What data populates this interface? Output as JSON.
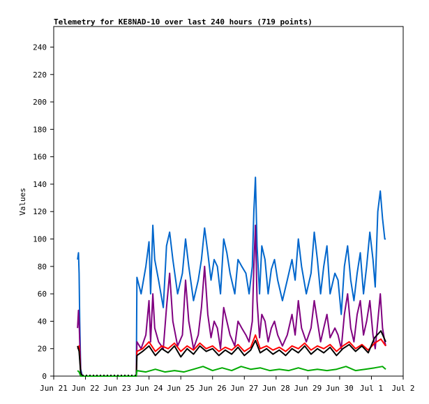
{
  "chart_data": {
    "type": "line",
    "title": "Telemetry for KE8NAD-10 over last 240 hours (719 points)",
    "xlabel": "",
    "ylabel": "Values",
    "x_ticks": [
      "Jun 21",
      "Jun 22",
      "Jun 23",
      "Jun 24",
      "Jun 25",
      "Jun 26",
      "Jun 27",
      "Jun 28",
      "Jun 29",
      "Jun 30",
      "Jul 1",
      "Jul 2"
    ],
    "xlim_days": [
      0,
      11
    ],
    "ylim": [
      0,
      255
    ],
    "y_ticks": [
      0,
      20,
      40,
      60,
      80,
      100,
      120,
      140,
      160,
      180,
      200,
      220,
      240
    ],
    "grid": false,
    "legend": "none",
    "series": [
      {
        "color": "#0066cc",
        "points": [
          [
            0.75,
            85
          ],
          [
            0.78,
            90
          ],
          [
            0.8,
            75
          ],
          [
            0.82,
            40
          ],
          [
            0.85,
            5
          ],
          [
            0.9,
            0
          ],
          [
            2.6,
            0
          ],
          [
            2.62,
            72
          ],
          [
            2.75,
            60
          ],
          [
            2.9,
            80
          ],
          [
            3.0,
            98
          ],
          [
            3.05,
            60
          ],
          [
            3.12,
            110
          ],
          [
            3.18,
            85
          ],
          [
            3.3,
            70
          ],
          [
            3.45,
            50
          ],
          [
            3.55,
            95
          ],
          [
            3.65,
            105
          ],
          [
            3.75,
            85
          ],
          [
            3.9,
            60
          ],
          [
            4.05,
            75
          ],
          [
            4.15,
            100
          ],
          [
            4.25,
            80
          ],
          [
            4.4,
            55
          ],
          [
            4.55,
            70
          ],
          [
            4.65,
            85
          ],
          [
            4.75,
            108
          ],
          [
            4.85,
            90
          ],
          [
            4.95,
            70
          ],
          [
            5.05,
            85
          ],
          [
            5.15,
            80
          ],
          [
            5.25,
            60
          ],
          [
            5.35,
            100
          ],
          [
            5.45,
            90
          ],
          [
            5.55,
            75
          ],
          [
            5.7,
            60
          ],
          [
            5.8,
            85
          ],
          [
            5.92,
            80
          ],
          [
            6.05,
            75
          ],
          [
            6.15,
            60
          ],
          [
            6.25,
            80
          ],
          [
            6.3,
            120
          ],
          [
            6.35,
            145
          ],
          [
            6.4,
            95
          ],
          [
            6.48,
            60
          ],
          [
            6.55,
            95
          ],
          [
            6.65,
            85
          ],
          [
            6.75,
            60
          ],
          [
            6.85,
            78
          ],
          [
            6.95,
            85
          ],
          [
            7.05,
            70
          ],
          [
            7.2,
            55
          ],
          [
            7.35,
            70
          ],
          [
            7.5,
            85
          ],
          [
            7.6,
            70
          ],
          [
            7.7,
            100
          ],
          [
            7.8,
            80
          ],
          [
            7.95,
            60
          ],
          [
            8.1,
            75
          ],
          [
            8.2,
            105
          ],
          [
            8.3,
            85
          ],
          [
            8.4,
            60
          ],
          [
            8.5,
            80
          ],
          [
            8.6,
            95
          ],
          [
            8.7,
            60
          ],
          [
            8.85,
            75
          ],
          [
            8.95,
            70
          ],
          [
            9.05,
            45
          ],
          [
            9.15,
            80
          ],
          [
            9.25,
            95
          ],
          [
            9.35,
            70
          ],
          [
            9.45,
            55
          ],
          [
            9.55,
            75
          ],
          [
            9.65,
            90
          ],
          [
            9.75,
            60
          ],
          [
            9.85,
            80
          ],
          [
            9.95,
            105
          ],
          [
            10.05,
            85
          ],
          [
            10.12,
            65
          ],
          [
            10.2,
            120
          ],
          [
            10.28,
            135
          ],
          [
            10.35,
            115
          ],
          [
            10.42,
            100
          ],
          [
            10.45,
            100
          ]
        ]
      },
      {
        "color": "#800080",
        "points": [
          [
            0.75,
            35
          ],
          [
            0.78,
            48
          ],
          [
            0.8,
            40
          ],
          [
            0.82,
            25
          ],
          [
            0.85,
            3
          ],
          [
            0.9,
            0
          ],
          [
            2.6,
            0
          ],
          [
            2.62,
            25
          ],
          [
            2.75,
            20
          ],
          [
            2.9,
            30
          ],
          [
            3.0,
            55
          ],
          [
            3.05,
            25
          ],
          [
            3.12,
            60
          ],
          [
            3.18,
            35
          ],
          [
            3.3,
            25
          ],
          [
            3.45,
            20
          ],
          [
            3.55,
            50
          ],
          [
            3.65,
            75
          ],
          [
            3.75,
            40
          ],
          [
            3.9,
            22
          ],
          [
            4.05,
            30
          ],
          [
            4.15,
            70
          ],
          [
            4.25,
            40
          ],
          [
            4.4,
            20
          ],
          [
            4.55,
            30
          ],
          [
            4.65,
            50
          ],
          [
            4.75,
            80
          ],
          [
            4.85,
            45
          ],
          [
            4.95,
            28
          ],
          [
            5.05,
            40
          ],
          [
            5.15,
            35
          ],
          [
            5.25,
            20
          ],
          [
            5.35,
            50
          ],
          [
            5.45,
            40
          ],
          [
            5.55,
            30
          ],
          [
            5.7,
            22
          ],
          [
            5.8,
            40
          ],
          [
            5.92,
            35
          ],
          [
            6.05,
            30
          ],
          [
            6.15,
            25
          ],
          [
            6.25,
            40
          ],
          [
            6.3,
            80
          ],
          [
            6.35,
            110
          ],
          [
            6.4,
            55
          ],
          [
            6.48,
            28
          ],
          [
            6.55,
            45
          ],
          [
            6.65,
            40
          ],
          [
            6.75,
            25
          ],
          [
            6.85,
            35
          ],
          [
            6.95,
            40
          ],
          [
            7.05,
            30
          ],
          [
            7.2,
            22
          ],
          [
            7.35,
            30
          ],
          [
            7.5,
            45
          ],
          [
            7.6,
            30
          ],
          [
            7.7,
            55
          ],
          [
            7.8,
            35
          ],
          [
            7.95,
            25
          ],
          [
            8.1,
            35
          ],
          [
            8.2,
            55
          ],
          [
            8.3,
            40
          ],
          [
            8.4,
            25
          ],
          [
            8.5,
            35
          ],
          [
            8.6,
            45
          ],
          [
            8.7,
            28
          ],
          [
            8.85,
            35
          ],
          [
            8.95,
            30
          ],
          [
            9.05,
            20
          ],
          [
            9.15,
            45
          ],
          [
            9.25,
            60
          ],
          [
            9.35,
            35
          ],
          [
            9.45,
            25
          ],
          [
            9.55,
            45
          ],
          [
            9.65,
            55
          ],
          [
            9.75,
            30
          ],
          [
            9.85,
            40
          ],
          [
            9.95,
            55
          ],
          [
            10.05,
            30
          ],
          [
            10.12,
            20
          ],
          [
            10.2,
            40
          ],
          [
            10.28,
            60
          ],
          [
            10.35,
            35
          ],
          [
            10.42,
            25
          ],
          [
            10.45,
            22
          ]
        ]
      },
      {
        "color": "#ff0000",
        "points": [
          [
            0.75,
            20
          ],
          [
            0.8,
            22
          ],
          [
            0.85,
            2
          ],
          [
            0.9,
            0
          ],
          [
            2.6,
            0
          ],
          [
            2.62,
            18
          ],
          [
            2.8,
            20
          ],
          [
            3.0,
            25
          ],
          [
            3.2,
            18
          ],
          [
            3.4,
            22
          ],
          [
            3.6,
            20
          ],
          [
            3.8,
            24
          ],
          [
            4.0,
            18
          ],
          [
            4.2,
            22
          ],
          [
            4.4,
            19
          ],
          [
            4.6,
            24
          ],
          [
            4.8,
            20
          ],
          [
            5.0,
            22
          ],
          [
            5.2,
            18
          ],
          [
            5.4,
            21
          ],
          [
            5.6,
            19
          ],
          [
            5.8,
            23
          ],
          [
            6.0,
            18
          ],
          [
            6.2,
            21
          ],
          [
            6.35,
            30
          ],
          [
            6.5,
            20
          ],
          [
            6.7,
            22
          ],
          [
            6.9,
            19
          ],
          [
            7.1,
            21
          ],
          [
            7.3,
            18
          ],
          [
            7.5,
            22
          ],
          [
            7.7,
            20
          ],
          [
            7.9,
            24
          ],
          [
            8.1,
            19
          ],
          [
            8.3,
            22
          ],
          [
            8.5,
            20
          ],
          [
            8.7,
            23
          ],
          [
            8.9,
            18
          ],
          [
            9.1,
            22
          ],
          [
            9.3,
            25
          ],
          [
            9.5,
            20
          ],
          [
            9.7,
            23
          ],
          [
            9.9,
            19
          ],
          [
            10.1,
            24
          ],
          [
            10.3,
            27
          ],
          [
            10.45,
            22
          ]
        ]
      },
      {
        "color": "#000000",
        "points": [
          [
            0.75,
            22
          ],
          [
            0.8,
            18
          ],
          [
            0.85,
            2
          ],
          [
            0.9,
            0
          ],
          [
            2.6,
            0
          ],
          [
            2.62,
            15
          ],
          [
            2.8,
            18
          ],
          [
            3.0,
            22
          ],
          [
            3.2,
            15
          ],
          [
            3.4,
            20
          ],
          [
            3.6,
            17
          ],
          [
            3.8,
            22
          ],
          [
            4.0,
            14
          ],
          [
            4.2,
            20
          ],
          [
            4.4,
            16
          ],
          [
            4.6,
            22
          ],
          [
            4.8,
            18
          ],
          [
            5.0,
            20
          ],
          [
            5.2,
            15
          ],
          [
            5.4,
            19
          ],
          [
            5.6,
            16
          ],
          [
            5.8,
            21
          ],
          [
            6.0,
            15
          ],
          [
            6.2,
            19
          ],
          [
            6.35,
            26
          ],
          [
            6.5,
            17
          ],
          [
            6.7,
            20
          ],
          [
            6.9,
            16
          ],
          [
            7.1,
            19
          ],
          [
            7.3,
            15
          ],
          [
            7.5,
            20
          ],
          [
            7.7,
            17
          ],
          [
            7.9,
            22
          ],
          [
            8.1,
            16
          ],
          [
            8.3,
            20
          ],
          [
            8.5,
            17
          ],
          [
            8.7,
            21
          ],
          [
            8.9,
            15
          ],
          [
            9.1,
            20
          ],
          [
            9.3,
            23
          ],
          [
            9.5,
            18
          ],
          [
            9.7,
            22
          ],
          [
            9.9,
            17
          ],
          [
            10.1,
            28
          ],
          [
            10.3,
            33
          ],
          [
            10.45,
            25
          ]
        ]
      },
      {
        "color": "#00aa00",
        "points": [
          [
            0.75,
            4
          ],
          [
            0.8,
            3
          ],
          [
            0.85,
            0
          ],
          [
            2.6,
            0
          ],
          [
            2.62,
            4
          ],
          [
            2.9,
            3
          ],
          [
            3.2,
            5
          ],
          [
            3.5,
            3
          ],
          [
            3.8,
            4
          ],
          [
            4.1,
            3
          ],
          [
            4.4,
            5
          ],
          [
            4.7,
            7
          ],
          [
            5.0,
            4
          ],
          [
            5.3,
            6
          ],
          [
            5.6,
            4
          ],
          [
            5.9,
            7
          ],
          [
            6.2,
            5
          ],
          [
            6.5,
            6
          ],
          [
            6.8,
            4
          ],
          [
            7.1,
            5
          ],
          [
            7.4,
            4
          ],
          [
            7.7,
            6
          ],
          [
            8.0,
            4
          ],
          [
            8.3,
            5
          ],
          [
            8.6,
            4
          ],
          [
            8.9,
            5
          ],
          [
            9.2,
            7
          ],
          [
            9.5,
            4
          ],
          [
            9.8,
            5
          ],
          [
            10.1,
            6
          ],
          [
            10.35,
            7
          ],
          [
            10.45,
            5
          ]
        ]
      }
    ]
  }
}
